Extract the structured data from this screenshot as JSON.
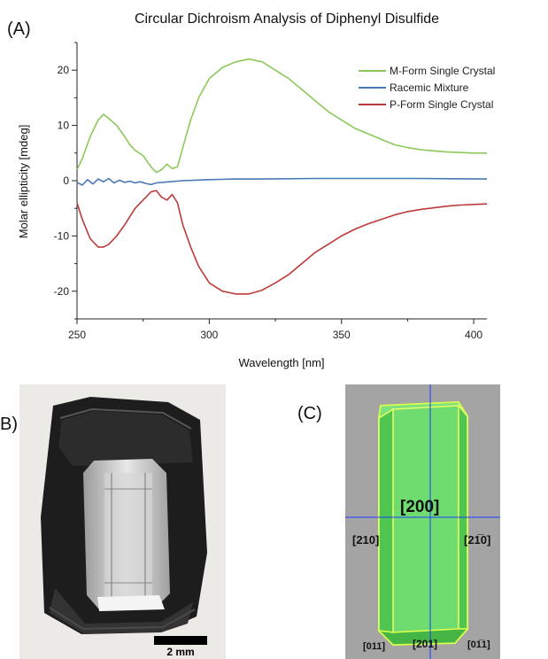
{
  "panels": {
    "a_label": "(A)",
    "b_label": "B)",
    "c_label": "(C)"
  },
  "chart_data": {
    "type": "line",
    "title": "Circular Dichroism Analysis of Diphenyl Disulfide",
    "xlabel": "Wavelength [nm]",
    "ylabel": "Molar ellipticity [mdeg]",
    "xlim": [
      250,
      405
    ],
    "ylim": [
      -25,
      25
    ],
    "xticks": [
      250,
      300,
      350,
      400
    ],
    "yticks": [
      -20,
      -10,
      0,
      10,
      20
    ],
    "grid": false,
    "legend_position": "top-right",
    "series": [
      {
        "name": "M-Form Single Crystal",
        "color": "#8dc95a",
        "x": [
          250,
          252,
          255,
          258,
          260,
          262,
          265,
          268,
          270,
          272,
          275,
          278,
          280,
          282,
          284,
          286,
          288,
          290,
          293,
          296,
          300,
          305,
          310,
          315,
          320,
          325,
          330,
          335,
          340,
          345,
          350,
          355,
          360,
          365,
          370,
          375,
          380,
          385,
          390,
          395,
          400,
          405
        ],
        "y": [
          2,
          4,
          8,
          11,
          12,
          11.3,
          10,
          8,
          6.5,
          5.5,
          4.5,
          2.5,
          1.5,
          2,
          3,
          2.2,
          2.5,
          6,
          11,
          15,
          18.5,
          20.5,
          21.5,
          22,
          21.5,
          20,
          18.5,
          16.5,
          14.5,
          12.5,
          11,
          9.5,
          8.5,
          7.5,
          6.5,
          6,
          5.6,
          5.4,
          5.2,
          5.1,
          5,
          5
        ]
      },
      {
        "name": "Racemic Mixture",
        "color": "#4a78b4",
        "x": [
          250,
          252,
          254,
          256,
          258,
          260,
          262,
          264,
          266,
          268,
          270,
          272,
          274,
          276,
          278,
          280,
          285,
          290,
          300,
          310,
          320,
          340,
          360,
          380,
          405
        ],
        "y": [
          -0.3,
          -0.8,
          0.2,
          -0.6,
          0.3,
          -0.2,
          0.4,
          -0.4,
          0.1,
          -0.3,
          -0.1,
          -0.4,
          -0.2,
          -0.5,
          -0.7,
          -0.4,
          -0.2,
          0,
          0.2,
          0.3,
          0.3,
          0.4,
          0.4,
          0.4,
          0.3
        ]
      },
      {
        "name": "P-Form Single Crystal",
        "color": "#bd3a3a",
        "x": [
          250,
          252,
          255,
          258,
          260,
          262,
          265,
          268,
          270,
          272,
          275,
          278,
          280,
          282,
          284,
          286,
          288,
          290,
          293,
          296,
          300,
          305,
          310,
          315,
          320,
          325,
          330,
          335,
          340,
          345,
          350,
          355,
          360,
          365,
          370,
          375,
          380,
          385,
          390,
          395,
          400,
          405
        ],
        "y": [
          -4,
          -7,
          -10.5,
          -12,
          -12,
          -11.5,
          -10,
          -8,
          -6.5,
          -5,
          -3.5,
          -2,
          -1.8,
          -3,
          -3.5,
          -2.5,
          -4,
          -8,
          -12,
          -15.5,
          -18.5,
          -20,
          -20.5,
          -20.5,
          -19.8,
          -18.5,
          -17,
          -15,
          -13,
          -11.5,
          -10,
          -8.8,
          -7.8,
          -7,
          -6.2,
          -5.6,
          -5.2,
          -4.9,
          -4.6,
          -4.4,
          -4.3,
          -4.2
        ]
      }
    ]
  },
  "photo": {
    "scalebar_label": "2 mm"
  },
  "model": {
    "center_face": "[200]",
    "left_face": "[210]",
    "right_face": "[21̅0]",
    "bottom_left_face": "[011]",
    "bottom_mid_face": "[201]",
    "bottom_right_face": "[01̅1]"
  }
}
